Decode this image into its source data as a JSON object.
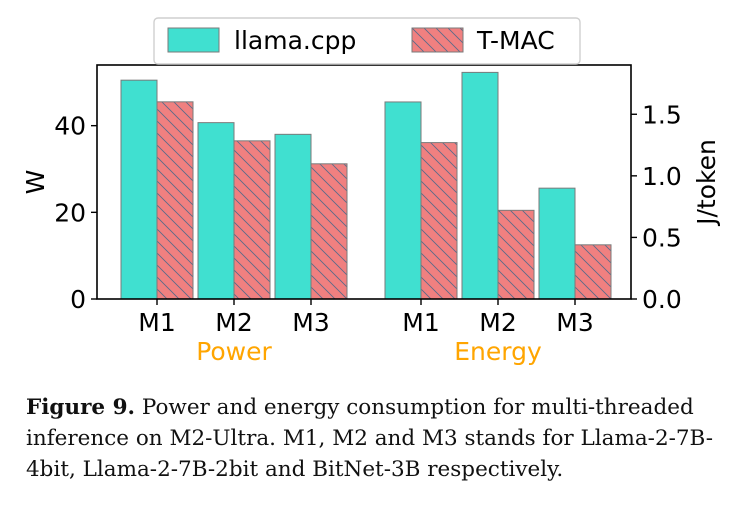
{
  "chart_data": {
    "type": "bar",
    "groups": [
      {
        "name": "Power",
        "axis": "left",
        "categories": [
          "M1",
          "M2",
          "M3"
        ],
        "series": [
          {
            "name": "llama.cpp",
            "values": [
              50.5,
              40.7,
              38.0
            ]
          },
          {
            "name": "T-MAC",
            "values": [
              45.5,
              36.5,
              31.2
            ]
          }
        ]
      },
      {
        "name": "Energy",
        "axis": "right",
        "categories": [
          "M1",
          "M2",
          "M3"
        ],
        "series": [
          {
            "name": "llama.cpp",
            "values": [
              1.6,
              1.84,
              0.9
            ]
          },
          {
            "name": "T-MAC",
            "values": [
              1.27,
              0.72,
              0.44
            ]
          }
        ]
      }
    ],
    "legend": [
      "llama.cpp",
      "T-MAC"
    ],
    "legend_placement": "top-center",
    "ylabel_left": "W",
    "ylabel_right": "J/token",
    "ylim_left": [
      0,
      54
    ],
    "ylim_right": [
      0,
      1.9
    ],
    "yticks_left": [
      "0",
      "20",
      "40"
    ],
    "yticks_left_values": [
      0,
      20,
      40
    ],
    "yticks_right": [
      "0.0",
      "0.5",
      "1.0",
      "1.5"
    ],
    "yticks_right_values": [
      0,
      0.5,
      1.0,
      1.5
    ],
    "group_label_color": "#FFA500",
    "colors": {
      "llama.cpp": "#40E0D0",
      "T-MAC": "#F08080",
      "edge": "#7a7a7a",
      "hatch": "#5a6a8a"
    }
  },
  "caption": {
    "label": "Figure 9.",
    "text": " Power and energy consumption for multi-threaded inference on M2-Ultra. M1, M2 and M3 stands for Llama-2-7B-4bit, Llama-2-7B-2bit and BitNet-3B respectively."
  }
}
